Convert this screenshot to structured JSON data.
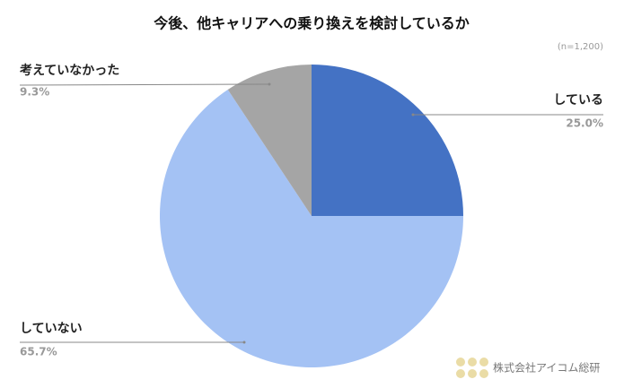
{
  "chart_data": {
    "type": "pie",
    "title": "今後、他キャリアへの乗り換えを検討しているか",
    "note": "(n=1,200)",
    "categories": [
      "している",
      "していない",
      "考えていなかった"
    ],
    "values": [
      25.0,
      65.7,
      9.3
    ],
    "value_labels": [
      "25.0%",
      "65.7%",
      "9.3%"
    ],
    "colors": [
      "#4472c4",
      "#a4c2f4",
      "#a5a5a5"
    ],
    "watermark": "株式会社アイコム総研"
  }
}
